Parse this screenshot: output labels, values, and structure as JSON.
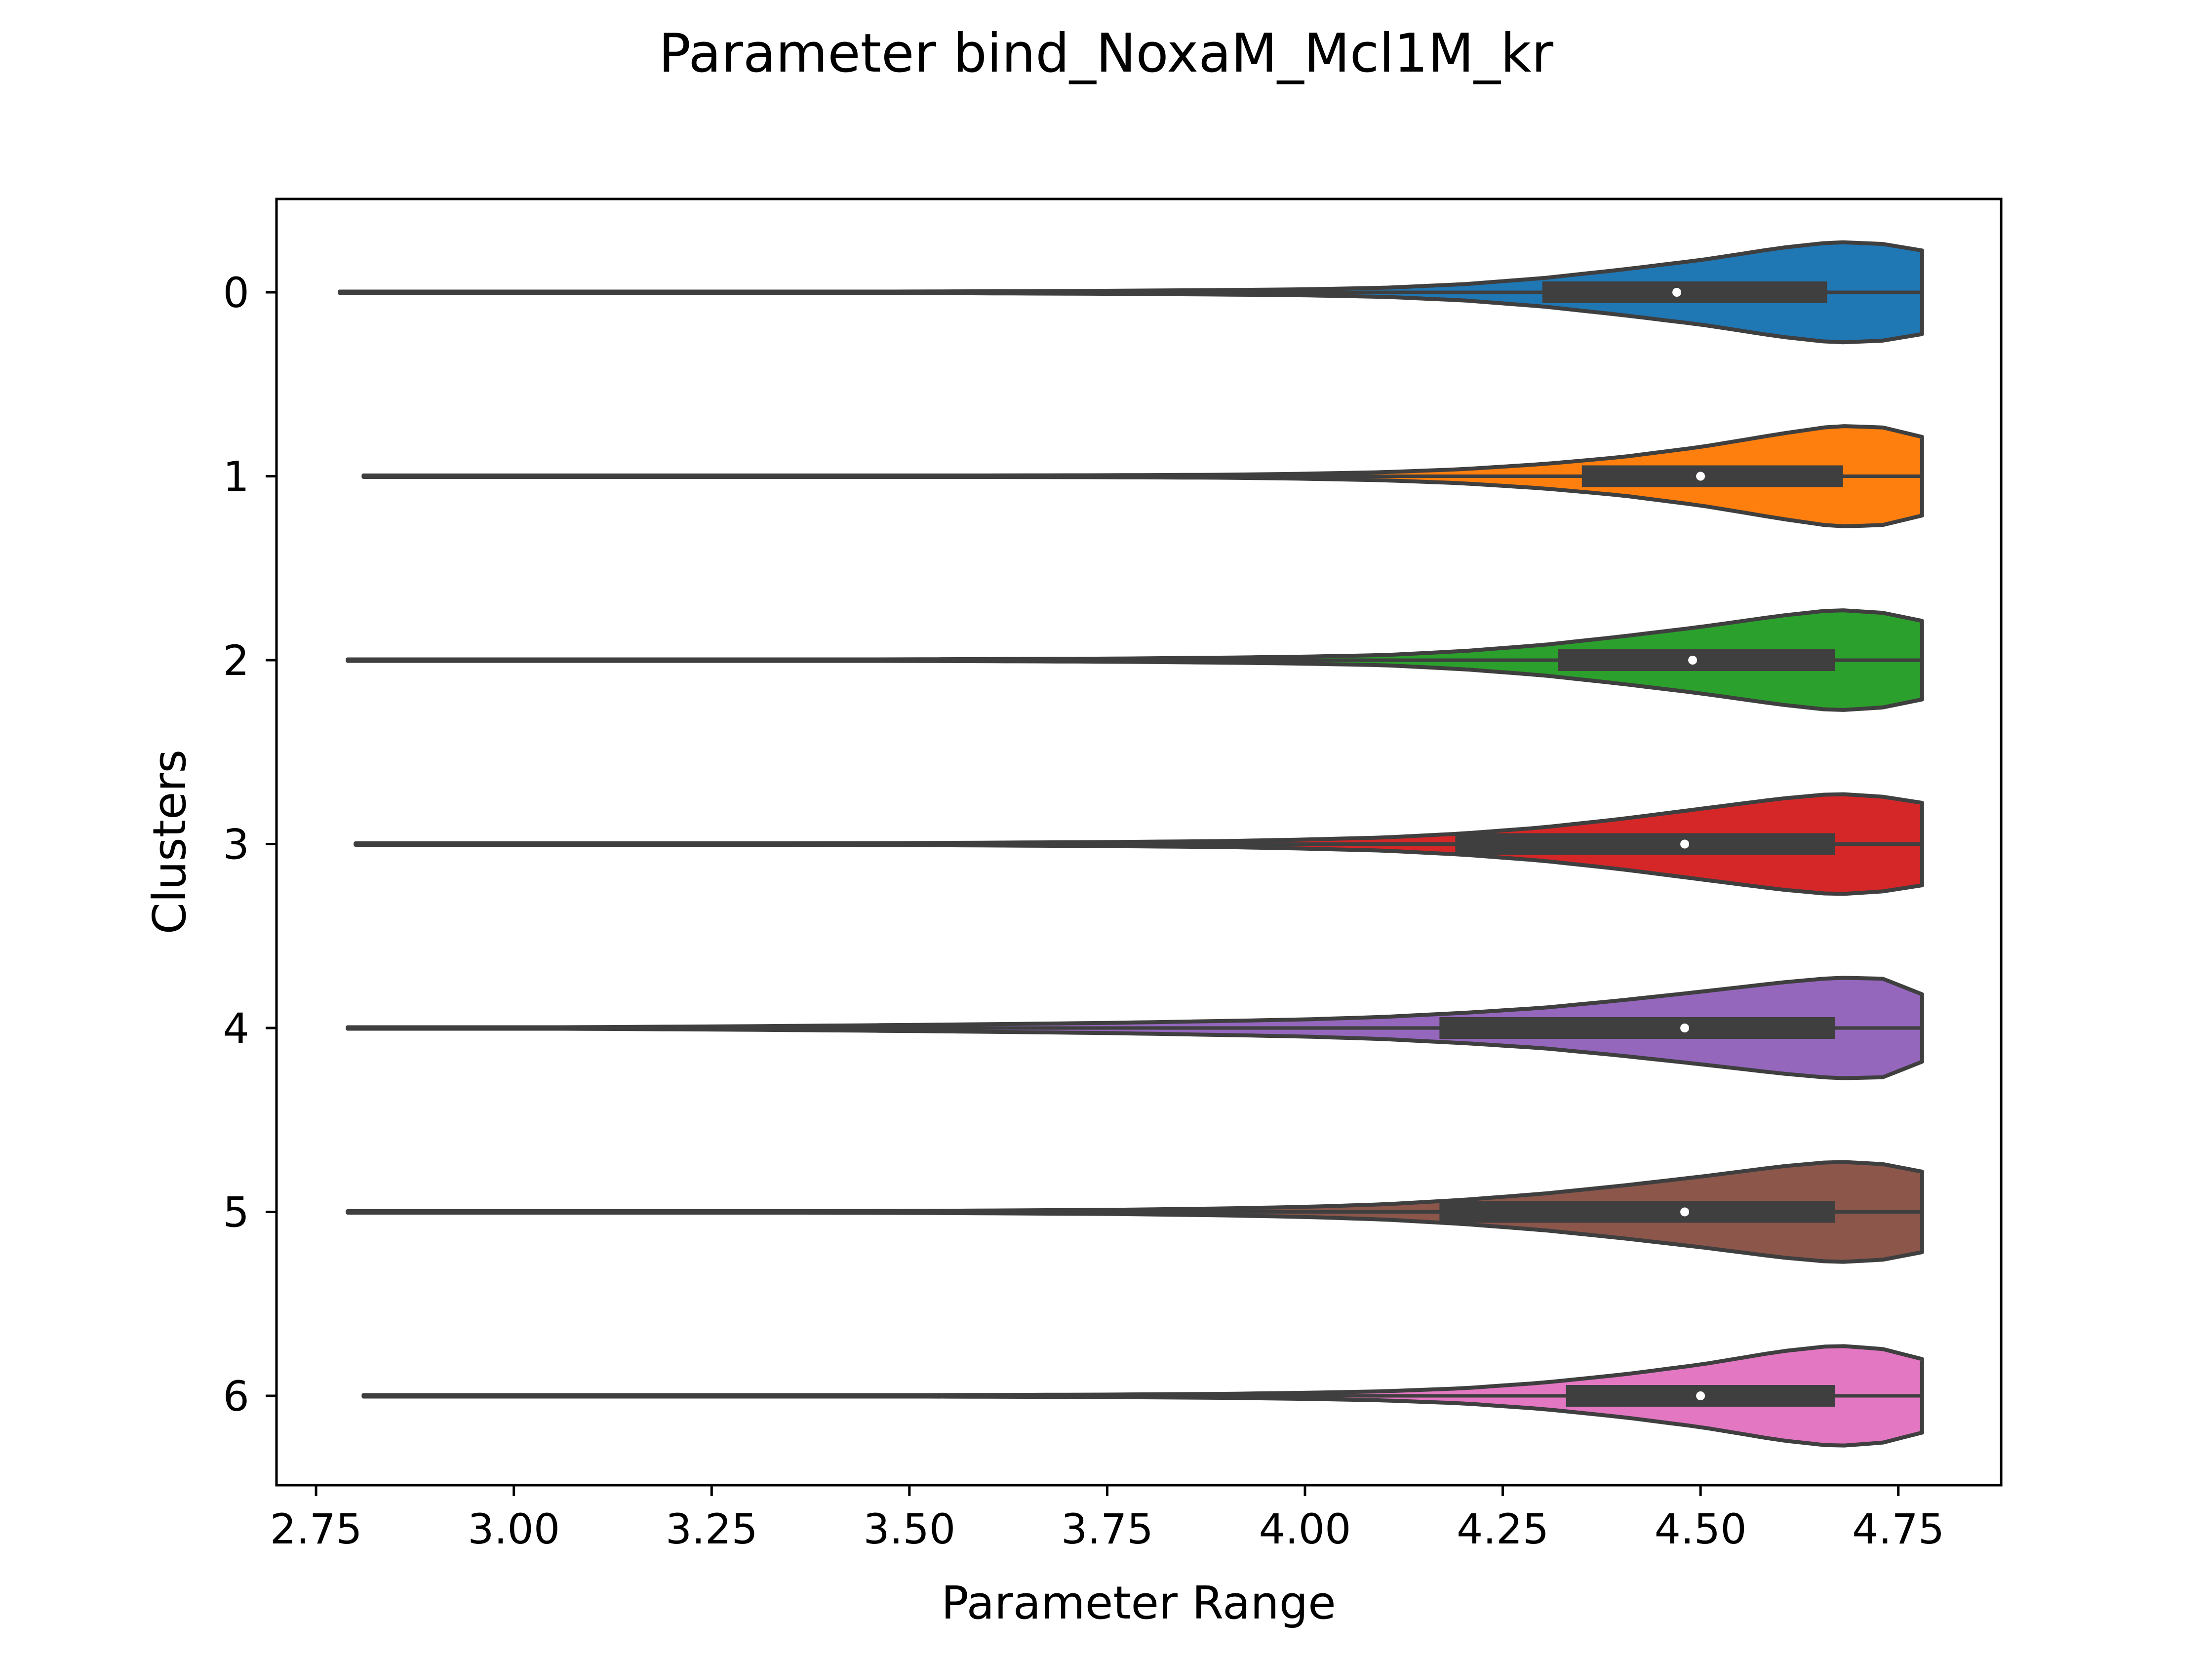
{
  "chart_data": {
    "type": "violin",
    "orientation": "horizontal",
    "title": "Parameter bind_NoxaM_Mcl1M_kr",
    "xlabel": "Parameter Range",
    "ylabel": "Clusters",
    "xlim": [
      2.7,
      4.88
    ],
    "xticks": [
      "2.75",
      "3.00",
      "3.25",
      "3.50",
      "3.75",
      "4.00",
      "4.25",
      "4.50",
      "4.75"
    ],
    "categories": [
      "0",
      "1",
      "2",
      "3",
      "4",
      "5",
      "6"
    ],
    "density_grid": [
      2.75,
      3.0,
      3.25,
      3.5,
      3.75,
      3.9,
      4.0,
      4.1,
      4.2,
      4.3,
      4.4,
      4.5,
      4.6,
      4.67,
      4.73,
      4.78
    ],
    "series": [
      {
        "name": "0",
        "color": "#1f77b4",
        "min": 2.78,
        "max": 4.78,
        "q1": 4.3,
        "median": 4.47,
        "q3": 4.66,
        "density": [
          0.002,
          0.005,
          0.01,
          0.015,
          0.03,
          0.045,
          0.06,
          0.09,
          0.16,
          0.28,
          0.45,
          0.64,
          0.88,
          1.0,
          0.96,
          0.83
        ]
      },
      {
        "name": "1",
        "color": "#ff7f0e",
        "min": 2.81,
        "max": 4.78,
        "q1": 4.35,
        "median": 4.5,
        "q3": 4.68,
        "density": [
          0.002,
          0.004,
          0.008,
          0.012,
          0.02,
          0.03,
          0.05,
          0.08,
          0.14,
          0.24,
          0.38,
          0.58,
          0.84,
          1.0,
          0.97,
          0.78
        ]
      },
      {
        "name": "2",
        "color": "#2ca02c",
        "min": 2.79,
        "max": 4.78,
        "q1": 4.32,
        "median": 4.49,
        "q3": 4.67,
        "density": [
          0.002,
          0.005,
          0.01,
          0.016,
          0.03,
          0.05,
          0.07,
          0.1,
          0.18,
          0.3,
          0.47,
          0.66,
          0.88,
          1.0,
          0.94,
          0.78
        ]
      },
      {
        "name": "3",
        "color": "#d62728",
        "min": 2.8,
        "max": 4.78,
        "q1": 4.19,
        "median": 4.48,
        "q3": 4.67,
        "density": [
          0.002,
          0.005,
          0.012,
          0.02,
          0.04,
          0.06,
          0.09,
          0.13,
          0.21,
          0.33,
          0.5,
          0.7,
          0.9,
          1.0,
          0.94,
          0.82
        ]
      },
      {
        "name": "4",
        "color": "#9467bd",
        "min": 2.79,
        "max": 4.78,
        "q1": 4.17,
        "median": 4.48,
        "q3": 4.67,
        "density": [
          0.003,
          0.01,
          0.03,
          0.06,
          0.1,
          0.14,
          0.17,
          0.22,
          0.3,
          0.4,
          0.55,
          0.72,
          0.9,
          1.0,
          0.98,
          0.67
        ]
      },
      {
        "name": "5",
        "color": "#8c564b",
        "min": 2.79,
        "max": 4.78,
        "q1": 4.17,
        "median": 4.48,
        "q3": 4.67,
        "density": [
          0.002,
          0.005,
          0.01,
          0.02,
          0.04,
          0.07,
          0.1,
          0.15,
          0.24,
          0.36,
          0.52,
          0.7,
          0.9,
          1.0,
          0.95,
          0.8
        ]
      },
      {
        "name": "6",
        "color": "#e377c2",
        "min": 2.81,
        "max": 4.78,
        "q1": 4.33,
        "median": 4.5,
        "q3": 4.67,
        "density": [
          0.002,
          0.004,
          0.008,
          0.013,
          0.025,
          0.04,
          0.06,
          0.09,
          0.15,
          0.26,
          0.42,
          0.62,
          0.88,
          1.0,
          0.93,
          0.73
        ]
      }
    ]
  }
}
